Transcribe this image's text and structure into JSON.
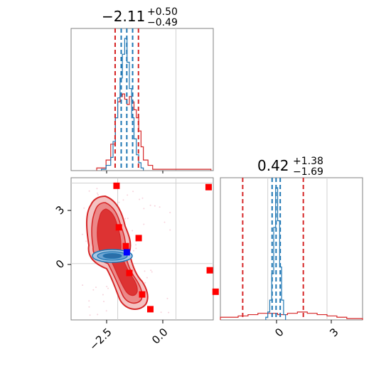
{
  "colors": {
    "red": "#d62728",
    "blue": "#1f77b4",
    "bright_red": "#ff0000",
    "bright_blue": "#0000ff",
    "grid": "#d0d0d0",
    "frame": "#808080"
  },
  "chart_data": [
    {
      "type": "histogram",
      "panel": "top-left",
      "title": {
        "value": "−2.11",
        "plus": "+0.50",
        "minus": "−0.49"
      },
      "xlim": [
        -4.5,
        1.6
      ],
      "gridlines_x": [
        0.0
      ],
      "grid": true,
      "series": [
        {
          "color": "#1f77b4",
          "step_x": [
            -3.2,
            -3.0,
            -2.8,
            -2.7,
            -2.6,
            -2.5,
            -2.4,
            -2.3,
            -2.2,
            -2.1,
            -2.0,
            -1.9,
            -1.8,
            -1.7,
            -1.6,
            -1.5,
            -1.4
          ],
          "step_y": [
            0.01,
            0.04,
            0.1,
            0.22,
            0.4,
            0.55,
            0.7,
            0.88,
            1.0,
            0.82,
            0.62,
            0.4,
            0.24,
            0.12,
            0.06,
            0.02,
            0.0
          ],
          "median": -2.11,
          "quantiles": [
            -2.35,
            -1.86
          ]
        },
        {
          "color": "#d62728",
          "step_x": [
            -3.4,
            -3.0,
            -2.8,
            -2.6,
            -2.5,
            -2.4,
            -2.3,
            -2.2,
            -2.1,
            -2.0,
            -1.9,
            -1.8,
            -1.7,
            -1.6,
            -1.5,
            -1.4,
            -1.2,
            -1.0,
            1.3,
            1.5
          ],
          "step_y": [
            0.02,
            0.08,
            0.2,
            0.4,
            0.52,
            0.56,
            0.58,
            0.54,
            0.5,
            0.56,
            0.52,
            0.46,
            0.4,
            0.3,
            0.18,
            0.08,
            0.04,
            0.01,
            0.01,
            0.0
          ],
          "quantiles": [
            -2.61,
            -1.61
          ],
          "median_line": -2.61
        }
      ]
    },
    {
      "type": "scatter-contour",
      "panel": "bottom-left",
      "xlim": [
        -4.5,
        1.6
      ],
      "ylim": [
        -2.1,
        3.2
      ],
      "gridlines_x": [
        -2.5,
        0.0
      ],
      "gridlines_y": [
        0,
        3
      ],
      "x_tick_labels": [
        "−2.5",
        "0.0"
      ],
      "y_tick_labels": [
        "0",
        "3"
      ],
      "red_markers": [
        {
          "x": -2.55,
          "y": 2.9
        },
        {
          "x": -2.45,
          "y": 1.35
        },
        {
          "x": -2.15,
          "y": 0.65
        },
        {
          "x": -1.6,
          "y": 0.95
        },
        {
          "x": -2.0,
          "y": -0.35
        },
        {
          "x": -1.45,
          "y": -1.15
        },
        {
          "x": -1.1,
          "y": -1.7
        },
        {
          "x": 1.4,
          "y": 2.85
        },
        {
          "x": 1.45,
          "y": -0.25
        },
        {
          "x": 1.7,
          "y": -1.05
        }
      ],
      "blue_marker": {
        "x": -2.11,
        "y": 0.42
      }
    },
    {
      "type": "histogram",
      "panel": "bottom-right",
      "title": {
        "value": "0.42",
        "plus": "+1.38",
        "minus": "−1.69"
      },
      "xlim": [
        -2.4,
        4.8
      ],
      "gridlines_x": [
        0,
        3
      ],
      "x_tick_labels": [
        "0",
        "3"
      ],
      "grid": true,
      "series": [
        {
          "color": "#1f77b4",
          "step_x": [
            -0.1,
            0.0,
            0.1,
            0.2,
            0.3,
            0.4,
            0.5,
            0.6,
            0.7,
            0.8,
            0.9
          ],
          "step_y": [
            0.02,
            0.06,
            0.15,
            0.35,
            0.7,
            1.0,
            0.75,
            0.4,
            0.15,
            0.04,
            0.0
          ],
          "median": 0.42,
          "quantiles": [
            0.22,
            0.63
          ]
        },
        {
          "color": "#d62728",
          "step_x": [
            -2.4,
            -1.5,
            -1.0,
            -0.5,
            0.0,
            0.5,
            1.0,
            1.5,
            2.0,
            2.5,
            3.0,
            3.5,
            4.0,
            4.8
          ],
          "step_y": [
            0.02,
            0.03,
            0.04,
            0.05,
            0.05,
            0.04,
            0.05,
            0.06,
            0.05,
            0.04,
            0.03,
            0.02,
            0.01,
            0.0
          ],
          "quantiles": [
            -1.27,
            1.8
          ]
        }
      ]
    }
  ]
}
